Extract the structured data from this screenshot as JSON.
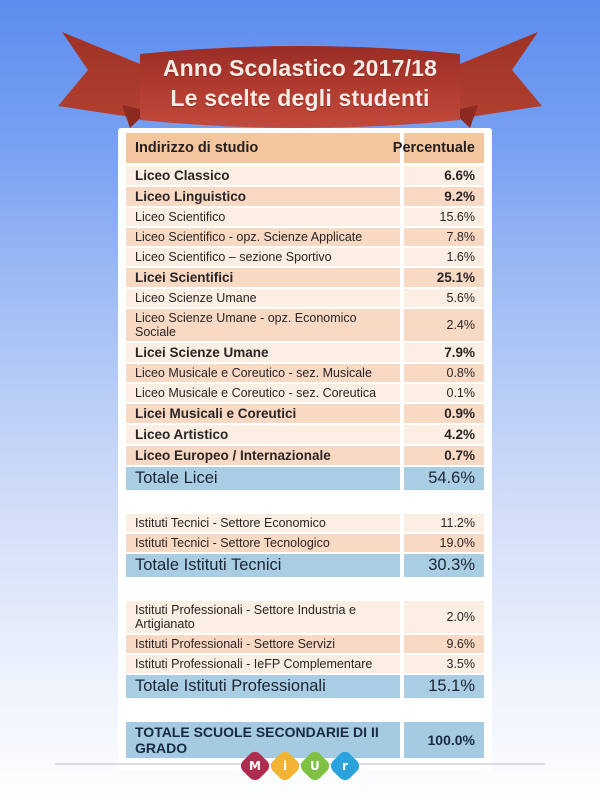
{
  "banner": {
    "title_line1": "Anno Scolastico 2017/18",
    "title_line2": "Le scelte degli studenti"
  },
  "colors": {
    "background_top": "#5d8cef",
    "background_bottom": "#fdfeff",
    "ribbon_band_top": "#9a2d25",
    "ribbon_band_bottom": "#c14a3c",
    "ribbon_wing": "#a63a2b",
    "ribbon_fold": "#8c2921",
    "header_bg": "#f4c69e",
    "row_light_bg": "#fbeee3",
    "row_dark_bg": "#f7d9c4",
    "total_row_bg": "#a9cee4",
    "text_dark": "#2b2425",
    "grand_total_text": "#172a42"
  },
  "table": {
    "header": {
      "col1": "Indirizzo di studio",
      "col2": "Percentuale"
    },
    "rows": [
      {
        "label": "Liceo Classico",
        "value": "6.6%",
        "type": "light bold"
      },
      {
        "label": "Liceo Linguistico",
        "value": "9.2%",
        "type": "dark bold"
      },
      {
        "label": "Liceo Scientifico",
        "value": "15.6%",
        "type": "light"
      },
      {
        "label": "Liceo Scientifico - opz. Scienze Applicate",
        "value": "7.8%",
        "type": "dark"
      },
      {
        "label": "Liceo Scientifico – sezione Sportivo",
        "value": "1.6%",
        "type": "light"
      },
      {
        "label": "Licei Scientifici",
        "value": "25.1%",
        "type": "dark bold"
      },
      {
        "label": "Liceo Scienze Umane",
        "value": "5.6%",
        "type": "light"
      },
      {
        "label": "Liceo Scienze Umane - opz. Economico Sociale",
        "value": "2.4%",
        "type": "dark"
      },
      {
        "label": "Licei Scienze Umane",
        "value": "7.9%",
        "type": "light bold"
      },
      {
        "label": "Liceo Musicale e Coreutico - sez. Musicale",
        "value": "0.8%",
        "type": "dark"
      },
      {
        "label": "Liceo Musicale e Coreutico - sez. Coreutica",
        "value": "0.1%",
        "type": "light"
      },
      {
        "label": "Licei Musicali e Coreutici",
        "value": "0.9%",
        "type": "dark bold"
      },
      {
        "label": "Liceo Artistico",
        "value": "4.2%",
        "type": "light bold"
      },
      {
        "label": "Liceo Europeo / Internazionale",
        "value": "0.7%",
        "type": "dark bold"
      },
      {
        "label": "Totale Licei",
        "value": "54.6%",
        "type": "total"
      },
      {
        "type": "spacer"
      },
      {
        "label": "Istituti Tecnici - Settore Economico",
        "value": "11.2%",
        "type": "light"
      },
      {
        "label": "Istituti Tecnici - Settore Tecnologico",
        "value": "19.0%",
        "type": "dark"
      },
      {
        "label": "Totale Istituti Tecnici",
        "value": "30.3%",
        "type": "total"
      },
      {
        "type": "spacer"
      },
      {
        "label": "Istituti Professionali - Settore Industria e Artigianato",
        "value": "2.0%",
        "type": "light"
      },
      {
        "label": "Istituti Professionali - Settore Servizi",
        "value": "9.6%",
        "type": "dark"
      },
      {
        "label": "Istituti Professionali - IeFP Complementare",
        "value": "3.5%",
        "type": "light"
      },
      {
        "label": "Totale Istituti Professionali",
        "value": "15.1%",
        "type": "total"
      },
      {
        "type": "spacer"
      },
      {
        "label": "TOTALE SCUOLE SECONDARIE DI II GRADO",
        "value": "100.0%",
        "type": "grand"
      }
    ]
  },
  "footer": {
    "logo": [
      {
        "letter": "M",
        "color": "#ae2c4e"
      },
      {
        "letter": "i",
        "color": "#f2b233"
      },
      {
        "letter": "U",
        "color": "#7fc143"
      },
      {
        "letter": "r",
        "color": "#2aa3dc"
      }
    ]
  },
  "chart_data": {
    "type": "table",
    "title": "Anno Scolastico 2017/18 — Le scelte degli studenti",
    "columns": [
      "Indirizzo di studio",
      "Percentuale"
    ],
    "rows": [
      [
        "Liceo Classico",
        6.6
      ],
      [
        "Liceo Linguistico",
        9.2
      ],
      [
        "Liceo Scientifico",
        15.6
      ],
      [
        "Liceo Scientifico - opz. Scienze Applicate",
        7.8
      ],
      [
        "Liceo Scientifico – sezione Sportivo",
        1.6
      ],
      [
        "Licei Scientifici",
        25.1
      ],
      [
        "Liceo Scienze Umane",
        5.6
      ],
      [
        "Liceo Scienze Umane - opz. Economico Sociale",
        2.4
      ],
      [
        "Licei Scienze Umane",
        7.9
      ],
      [
        "Liceo Musicale e Coreutico - sez. Musicale",
        0.8
      ],
      [
        "Liceo Musicale e Coreutico - sez. Coreutica",
        0.1
      ],
      [
        "Licei Musicali e Coreutici",
        0.9
      ],
      [
        "Liceo Artistico",
        4.2
      ],
      [
        "Liceo Europeo / Internazionale",
        0.7
      ],
      [
        "Totale Licei",
        54.6
      ],
      [
        "Istituti Tecnici - Settore Economico",
        11.2
      ],
      [
        "Istituti Tecnici - Settore Tecnologico",
        19.0
      ],
      [
        "Totale Istituti Tecnici",
        30.3
      ],
      [
        "Istituti Professionali - Settore Industria e Artigianato",
        2.0
      ],
      [
        "Istituti Professionali - Settore Servizi",
        9.6
      ],
      [
        "Istituti Professionali - IeFP Complementare",
        3.5
      ],
      [
        "Totale Istituti Professionali",
        15.1
      ],
      [
        "TOTALE SCUOLE SECONDARIE DI II GRADO",
        100.0
      ]
    ]
  }
}
